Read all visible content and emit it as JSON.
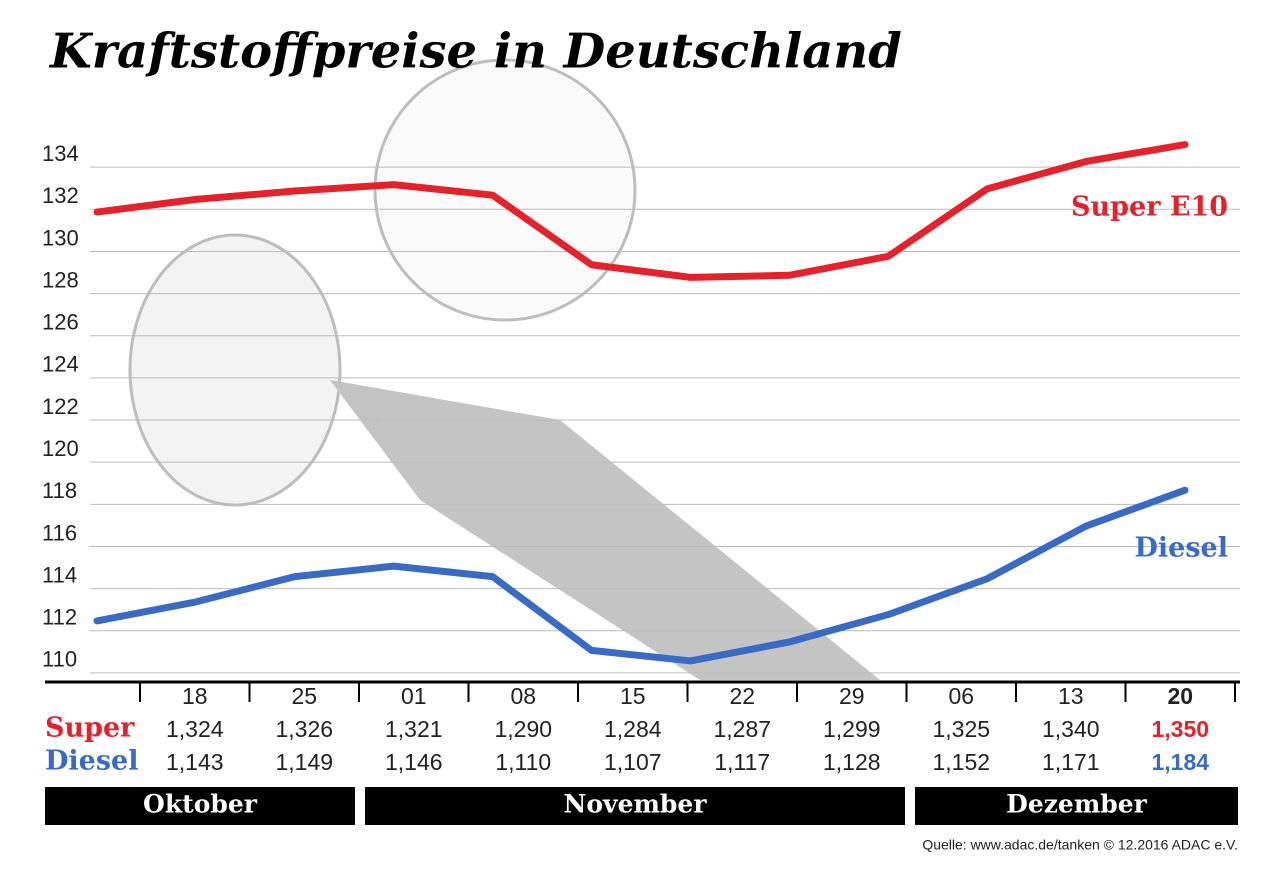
{
  "chart_data": {
    "type": "line",
    "title": "Kraftstoffpreise in Deutschland",
    "categories": [
      null,
      null,
      null,
      null,
      null,
      null,
      null,
      null,
      null,
      null,
      null,
      null
    ],
    "series": [
      {
        "name": "Super E10",
        "color": "#e3232c",
        "values": [
          131.3,
          131.9,
          132.3,
          132.6,
          132.1,
          128.8,
          128.2,
          128.3,
          129.2,
          132.4,
          133.7,
          134.5
        ]
      },
      {
        "name": "Diesel",
        "color": "#3a6bc4",
        "values": [
          111.9,
          112.8,
          114.0,
          114.5,
          114.0,
          110.5,
          110.0,
          110.9,
          112.2,
          113.9,
          116.4,
          118.1
        ]
      }
    ],
    "ylim": [
      109,
      136
    ],
    "yticks": [
      110,
      112,
      114,
      116,
      118,
      120,
      122,
      124,
      126,
      128,
      130,
      132,
      134
    ],
    "grid": true,
    "table": {
      "dates": [
        "18",
        "25",
        "01",
        "08",
        "15",
        "22",
        "29",
        "06",
        "13",
        "20"
      ],
      "rows": [
        {
          "label": "Super",
          "color": "#e3232c",
          "values": [
            "1,324",
            "1,326",
            "1,321",
            "1,290",
            "1,284",
            "1,287",
            "1,299",
            "1,325",
            "1,340",
            "1,350"
          ]
        },
        {
          "label": "Diesel",
          "color": "#3a6bc4",
          "values": [
            "1,143",
            "1,149",
            "1,146",
            "1,110",
            "1,107",
            "1,117",
            "1,128",
            "1,152",
            "1,171",
            "1,184"
          ]
        }
      ],
      "months": [
        "Oktober",
        "November",
        "Dezember"
      ]
    },
    "source": "Quelle: www.adac.de/tanken   © 12.2016  ADAC e.V."
  }
}
